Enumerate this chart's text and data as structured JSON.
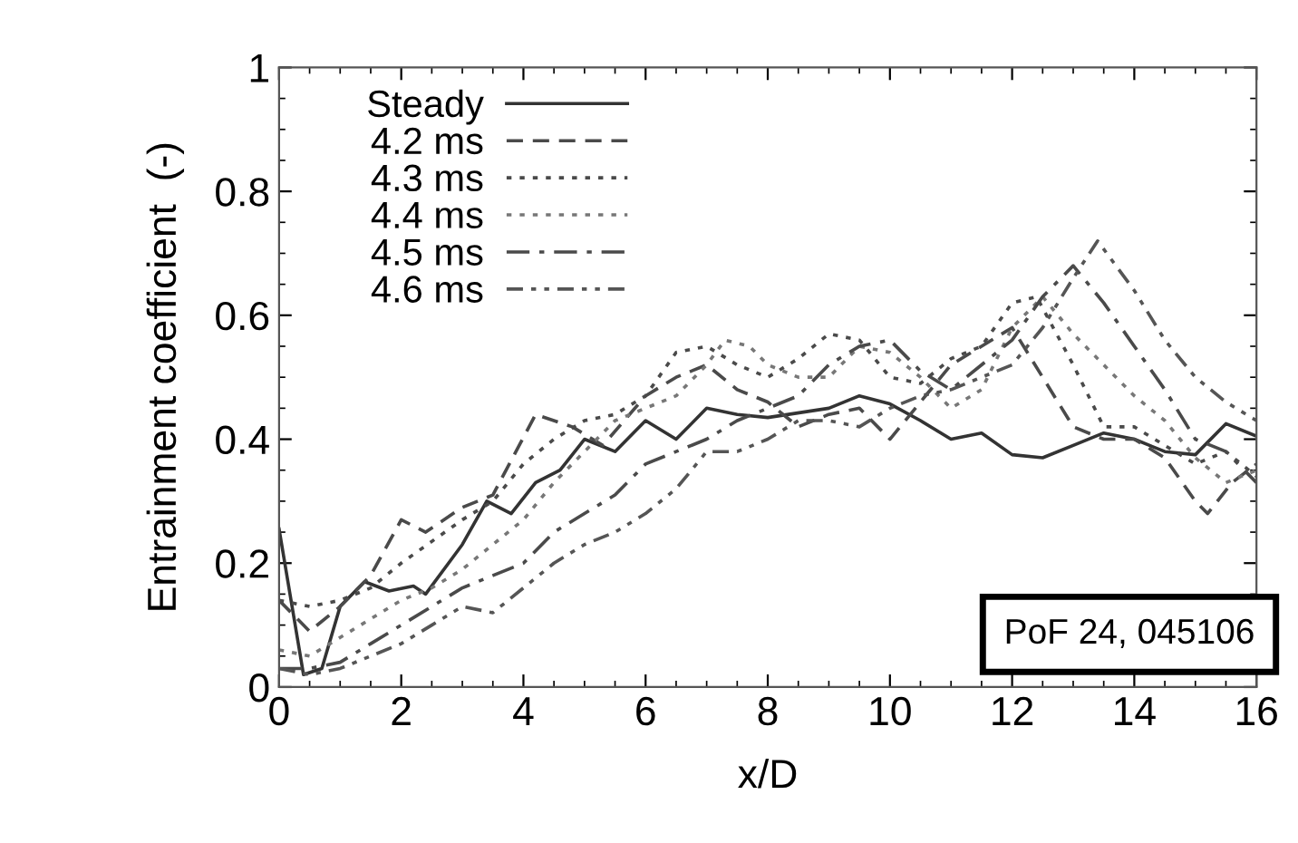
{
  "chart_data": {
    "type": "line",
    "xlabel": "x/D",
    "ylabel": "Entrainment coefficient  (-)",
    "xlim": [
      0,
      16
    ],
    "xticks": [
      0,
      2,
      4,
      6,
      8,
      10,
      12,
      14,
      16
    ],
    "ylim": [
      0,
      1
    ],
    "yticks": [
      0,
      0.2,
      0.4,
      0.6,
      0.8,
      1
    ],
    "grid": false,
    "legend": "top left",
    "marker": "none",
    "annotations": [
      "PoF 24, 045106"
    ],
    "series": [
      {
        "name": "Steady",
        "color": "#333333",
        "line_style": "solid",
        "x": [
          0,
          0.4,
          0.7,
          1.0,
          1.4,
          1.8,
          2.2,
          2.4,
          3.0,
          3.4,
          3.8,
          4.2,
          4.6,
          5.0,
          5.5,
          6.0,
          6.5,
          7.0,
          7.5,
          8,
          9,
          9.5,
          10,
          10.5,
          11,
          11.5,
          12,
          12.5,
          13,
          13.5,
          14,
          14.5,
          15,
          15.5,
          16
        ],
        "values": [
          0.255,
          0.02,
          0.03,
          0.13,
          0.17,
          0.155,
          0.163,
          0.15,
          0.23,
          0.3,
          0.28,
          0.33,
          0.35,
          0.4,
          0.38,
          0.43,
          0.4,
          0.45,
          0.44,
          0.435,
          0.45,
          0.47,
          0.457,
          0.43,
          0.4,
          0.41,
          0.375,
          0.37,
          0.39,
          0.41,
          0.4,
          0.38,
          0.375,
          0.425,
          0.405
        ]
      },
      {
        "name": "4.2 ms",
        "color": "#4a4a4a",
        "line_style": "dashed",
        "x": [
          0,
          0.5,
          1,
          1.5,
          2,
          2.4,
          3,
          3.5,
          4.2,
          4.8,
          5.3,
          6,
          6.5,
          7,
          7.5,
          8,
          8.5,
          9,
          9.5,
          10,
          10.5,
          11,
          11.5,
          12,
          12.5,
          13,
          13.5,
          14,
          14.5,
          15,
          15.2,
          15.6,
          16
        ],
        "values": [
          0.14,
          0.09,
          0.13,
          0.18,
          0.27,
          0.25,
          0.29,
          0.31,
          0.44,
          0.42,
          0.39,
          0.47,
          0.5,
          0.52,
          0.48,
          0.46,
          0.42,
          0.44,
          0.45,
          0.4,
          0.46,
          0.52,
          0.55,
          0.58,
          0.5,
          0.42,
          0.4,
          0.4,
          0.37,
          0.3,
          0.28,
          0.33,
          0.36
        ]
      },
      {
        "name": "4.3 ms",
        "color": "#4a4a4a",
        "line_style": "dotted",
        "x": [
          0,
          0.5,
          1,
          1.5,
          2,
          3,
          3.5,
          4,
          4.5,
          5,
          5.5,
          6,
          6.5,
          7,
          7.5,
          8,
          8.5,
          9,
          9.5,
          10,
          10.5,
          11,
          11.5,
          12,
          12.4,
          13,
          13.5,
          14,
          14.5,
          15,
          15.5,
          16
        ],
        "values": [
          0.14,
          0.13,
          0.14,
          0.16,
          0.2,
          0.27,
          0.3,
          0.36,
          0.4,
          0.43,
          0.44,
          0.47,
          0.54,
          0.55,
          0.52,
          0.5,
          0.53,
          0.57,
          0.56,
          0.5,
          0.49,
          0.53,
          0.55,
          0.62,
          0.63,
          0.52,
          0.42,
          0.42,
          0.39,
          0.36,
          0.38,
          0.34
        ]
      },
      {
        "name": "4.4 ms",
        "color": "#777777",
        "line_style": "dotted",
        "x": [
          0,
          0.5,
          1,
          1.5,
          2,
          2.5,
          3,
          3.5,
          4,
          4.5,
          5,
          5.5,
          6,
          6.5,
          7,
          7.3,
          7.7,
          8,
          8.5,
          9,
          9.5,
          10,
          10.5,
          11,
          11.5,
          12,
          12.5,
          13,
          13.5,
          14,
          14.5,
          15,
          15.5,
          16
        ],
        "values": [
          0.06,
          0.05,
          0.08,
          0.11,
          0.14,
          0.16,
          0.19,
          0.23,
          0.27,
          0.33,
          0.38,
          0.43,
          0.45,
          0.47,
          0.52,
          0.56,
          0.55,
          0.52,
          0.5,
          0.5,
          0.55,
          0.54,
          0.5,
          0.45,
          0.48,
          0.58,
          0.63,
          0.57,
          0.52,
          0.47,
          0.43,
          0.37,
          0.33,
          0.35
        ]
      },
      {
        "name": "4.5 ms",
        "color": "#4a4a4a",
        "line_style": "dashdot",
        "x": [
          0,
          0.5,
          1,
          1.5,
          2,
          2.5,
          3,
          3.5,
          4,
          4.5,
          5,
          5.5,
          6,
          6.5,
          7,
          7.5,
          8,
          8.5,
          9,
          9.5,
          10,
          10.5,
          11,
          11.5,
          12,
          12.5,
          13,
          13.5,
          14,
          14.5,
          15,
          15.5,
          16
        ],
        "values": [
          0.03,
          0.03,
          0.04,
          0.07,
          0.1,
          0.13,
          0.16,
          0.18,
          0.2,
          0.25,
          0.28,
          0.31,
          0.36,
          0.38,
          0.4,
          0.43,
          0.45,
          0.47,
          0.52,
          0.55,
          0.56,
          0.51,
          0.48,
          0.52,
          0.56,
          0.63,
          0.68,
          0.62,
          0.55,
          0.48,
          0.4,
          0.38,
          0.33
        ]
      },
      {
        "name": "4.6 ms",
        "color": "#555555",
        "line_style": "dashdotdot",
        "x": [
          0,
          0.5,
          1,
          1.5,
          2,
          2.5,
          3,
          3.5,
          4,
          4.5,
          5,
          5.5,
          6,
          6.5,
          7,
          7.5,
          8,
          8.5,
          9,
          9.5,
          10,
          10.5,
          11,
          11.5,
          12,
          12.5,
          13,
          13.4,
          14,
          14.5,
          15,
          15.5,
          16
        ],
        "values": [
          0.03,
          0.02,
          0.03,
          0.05,
          0.07,
          0.1,
          0.13,
          0.12,
          0.16,
          0.2,
          0.23,
          0.25,
          0.28,
          0.32,
          0.38,
          0.38,
          0.4,
          0.43,
          0.43,
          0.42,
          0.45,
          0.47,
          0.48,
          0.5,
          0.52,
          0.58,
          0.66,
          0.72,
          0.64,
          0.56,
          0.5,
          0.46,
          0.43
        ]
      }
    ]
  }
}
